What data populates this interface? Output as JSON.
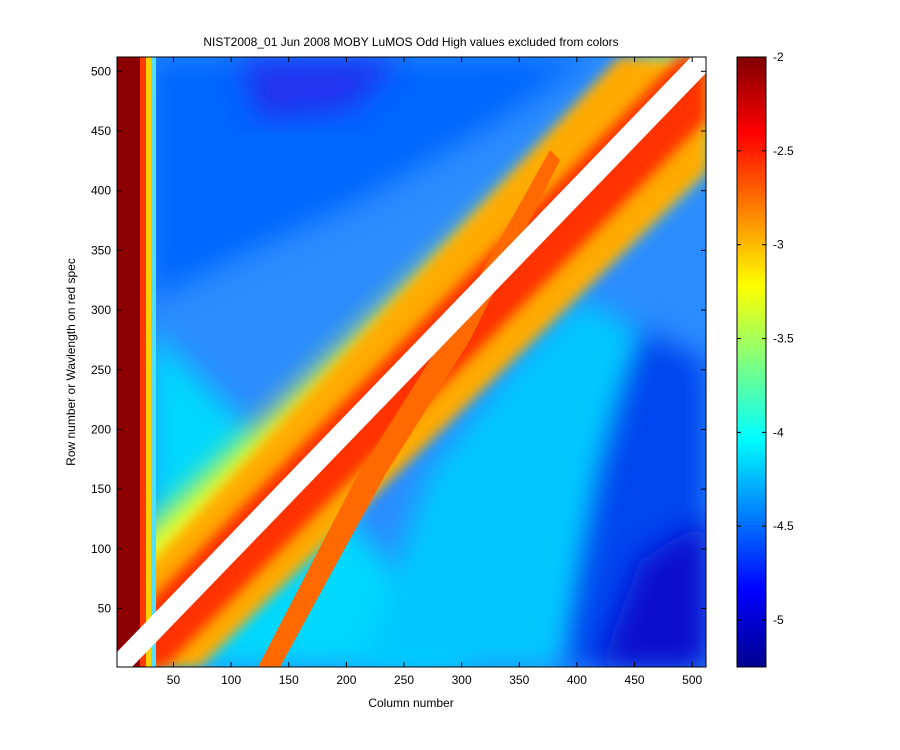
{
  "chart_data": {
    "type": "heatmap",
    "title": "NIST2008_01 Jun 2008 MOBY LuMOS Odd  High values excluded from colors",
    "xlabel": "Column number",
    "ylabel": "Row number or Wavlength on red spec",
    "xlim": [
      1,
      512
    ],
    "ylim": [
      1,
      512
    ],
    "x_ticks": [
      "50",
      "100",
      "150",
      "200",
      "250",
      "300",
      "350",
      "400",
      "450",
      "500"
    ],
    "y_ticks": [
      "50",
      "100",
      "150",
      "200",
      "250",
      "300",
      "350",
      "400",
      "450",
      "500"
    ],
    "colormap": "jet",
    "clim": [
      -5.25,
      -2
    ],
    "colorbar_ticks": [
      "-2",
      "-2.5",
      "-3",
      "-3.5",
      "-4",
      "-4.5",
      "-5"
    ],
    "colors": {
      "excluded_diagonal": "#ffffff",
      "background": "#ffffff"
    }
  }
}
